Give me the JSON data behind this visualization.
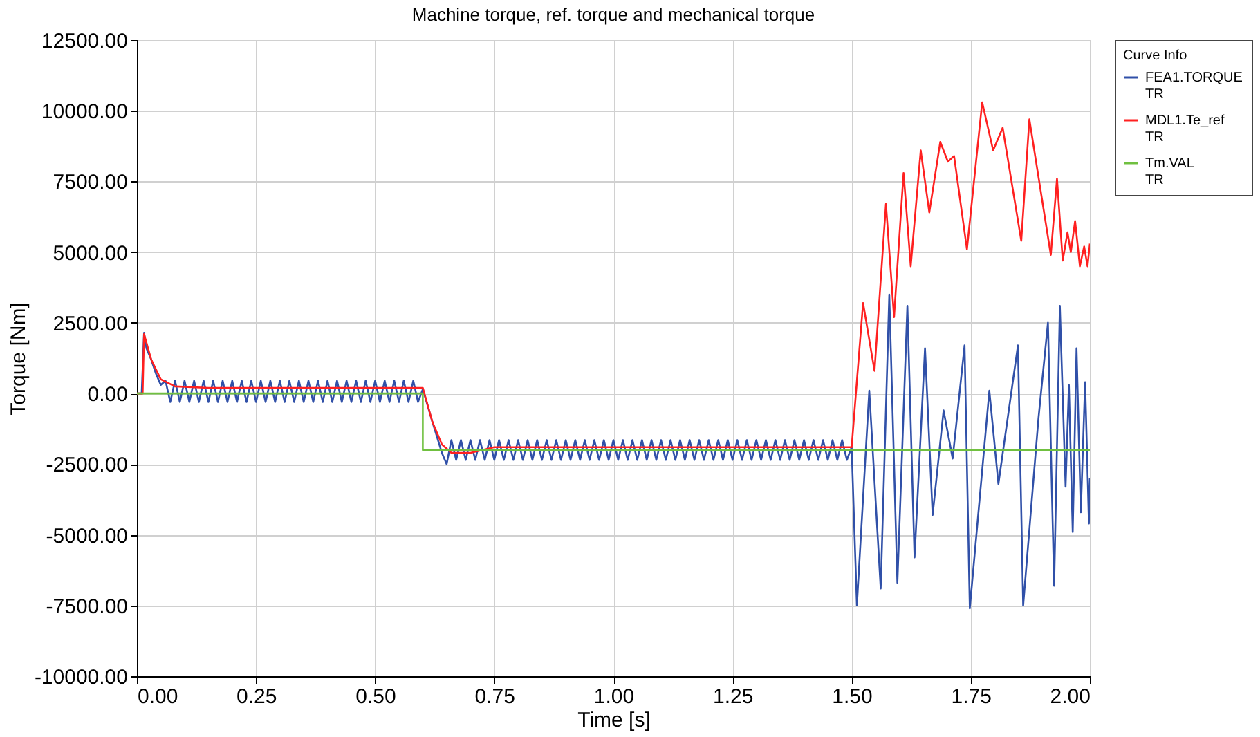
{
  "chart_data": {
    "type": "line",
    "title": "Machine torque, ref. torque and mechanical torque",
    "xlabel": "Time [s]",
    "ylabel": "Torque [Nm]",
    "legend_title": "Curve Info",
    "xlim": [
      0,
      2
    ],
    "xticks": [
      {
        "value": 0,
        "label": "0.00"
      },
      {
        "value": 0.25,
        "label": "0.25"
      },
      {
        "value": 0.5,
        "label": "0.50"
      },
      {
        "value": 0.75,
        "label": "0.75"
      },
      {
        "value": 1,
        "label": "1.00"
      },
      {
        "value": 1.25,
        "label": "1.25"
      },
      {
        "value": 1.5,
        "label": "1.50"
      },
      {
        "value": 1.75,
        "label": "1.75"
      },
      {
        "value": 2,
        "label": "2.00"
      }
    ],
    "ylim": [
      -10000,
      12500
    ],
    "yticks": [
      {
        "value": -10000,
        "label": "-10000.00"
      },
      {
        "value": -7500,
        "label": "-7500.00"
      },
      {
        "value": -5000,
        "label": "-5000.00"
      },
      {
        "value": -2500,
        "label": "-2500.00"
      },
      {
        "value": 0,
        "label": "0.00"
      },
      {
        "value": 2500,
        "label": "2500.00"
      },
      {
        "value": 5000,
        "label": "5000.00"
      },
      {
        "value": 7500,
        "label": "7500.00"
      },
      {
        "value": 10000,
        "label": "10000.00"
      },
      {
        "value": 12500,
        "label": "12500.00"
      }
    ],
    "grid": true,
    "legend": "top right",
    "series": [
      {
        "name": "FEA1.TORQUE\nTR",
        "color": "#3050a8",
        "x": [
          0,
          0.01,
          0.015,
          0.02,
          0.03,
          0.04,
          0.05,
          0.06,
          0.07,
          0.08,
          0.09,
          0.1,
          0.11,
          0.12,
          0.13,
          0.14,
          0.15,
          0.16,
          0.17,
          0.18,
          0.19,
          0.2,
          0.21,
          0.22,
          0.23,
          0.24,
          0.25,
          0.26,
          0.27,
          0.28,
          0.29,
          0.3,
          0.31,
          0.32,
          0.33,
          0.34,
          0.35,
          0.36,
          0.37,
          0.38,
          0.39,
          0.4,
          0.41,
          0.42,
          0.43,
          0.44,
          0.45,
          0.46,
          0.47,
          0.48,
          0.49,
          0.5,
          0.51,
          0.52,
          0.53,
          0.54,
          0.55,
          0.56,
          0.57,
          0.58,
          0.59,
          0.6,
          0.62,
          0.64,
          0.65,
          0.66,
          0.67,
          0.68,
          0.69,
          0.7,
          0.71,
          0.72,
          0.73,
          0.74,
          0.75,
          0.76,
          0.77,
          0.78,
          0.79,
          0.8,
          0.81,
          0.82,
          0.83,
          0.84,
          0.85,
          0.86,
          0.87,
          0.88,
          0.89,
          0.9,
          0.91,
          0.92,
          0.93,
          0.94,
          0.95,
          0.96,
          0.97,
          0.98,
          0.99,
          1.0,
          1.01,
          1.02,
          1.03,
          1.04,
          1.05,
          1.06,
          1.07,
          1.08,
          1.09,
          1.1,
          1.11,
          1.12,
          1.13,
          1.14,
          1.15,
          1.16,
          1.17,
          1.18,
          1.19,
          1.2,
          1.21,
          1.22,
          1.23,
          1.24,
          1.25,
          1.26,
          1.27,
          1.28,
          1.29,
          1.3,
          1.31,
          1.32,
          1.33,
          1.34,
          1.35,
          1.36,
          1.37,
          1.38,
          1.39,
          1.4,
          1.41,
          1.42,
          1.43,
          1.44,
          1.45,
          1.46,
          1.47,
          1.48,
          1.49,
          1.5,
          1.511,
          1.537,
          1.561,
          1.579,
          1.596,
          1.617,
          1.632,
          1.654,
          1.67,
          1.693,
          1.712,
          1.737,
          1.748,
          1.789,
          1.808,
          1.849,
          1.86,
          1.892,
          1.912,
          1.925,
          1.937,
          1.949,
          1.956,
          1.964,
          1.972,
          1.981,
          1.99,
          1.998,
          2.0
        ],
        "values": [
          0,
          0,
          2150,
          1600,
          1200,
          700,
          300,
          450,
          -300,
          450,
          -300,
          450,
          -300,
          450,
          -300,
          450,
          -300,
          450,
          -300,
          450,
          -300,
          450,
          -300,
          450,
          -300,
          450,
          -300,
          450,
          -300,
          450,
          -300,
          450,
          -300,
          450,
          -300,
          450,
          -300,
          450,
          -300,
          450,
          -300,
          450,
          -300,
          450,
          -300,
          450,
          -300,
          450,
          -300,
          450,
          -300,
          450,
          -300,
          450,
          -300,
          450,
          -300,
          450,
          -300,
          450,
          -300,
          150,
          -1000,
          -2100,
          -2500,
          -1650,
          -2350,
          -1650,
          -2350,
          -1650,
          -2350,
          -1650,
          -2350,
          -1650,
          -2350,
          -1650,
          -2350,
          -1650,
          -2350,
          -1650,
          -2350,
          -1650,
          -2350,
          -1650,
          -2350,
          -1650,
          -2350,
          -1650,
          -2350,
          -1650,
          -2350,
          -1650,
          -2350,
          -1650,
          -2350,
          -1650,
          -2350,
          -1650,
          -2350,
          -1650,
          -2350,
          -1650,
          -2350,
          -1650,
          -2350,
          -1650,
          -2350,
          -1650,
          -2350,
          -1650,
          -2350,
          -1650,
          -2350,
          -1650,
          -2350,
          -1650,
          -2350,
          -1650,
          -2350,
          -1650,
          -2350,
          -1650,
          -2350,
          -1650,
          -2350,
          -1650,
          -2350,
          -1650,
          -2350,
          -1650,
          -2350,
          -1650,
          -2350,
          -1650,
          -2350,
          -1650,
          -2350,
          -1650,
          -2350,
          -1650,
          -2350,
          -1650,
          -2350,
          -1650,
          -2350,
          -1650,
          -2350,
          -1650,
          -2350,
          -1900,
          -7500,
          100,
          -6900,
          3500,
          -6700,
          3100,
          -5800,
          1600,
          -4300,
          -600,
          -2300,
          1700,
          -7600,
          100,
          -3200,
          1700,
          -7500,
          -900,
          2500,
          -6800,
          3100,
          -3300,
          300,
          -4900,
          1600,
          -4200,
          400,
          -4600,
          -3000
        ]
      },
      {
        "name": "MDL1.Te_ref\nTR",
        "color": "#ff2020",
        "x": [
          0,
          0.012,
          0.015,
          0.03,
          0.05,
          0.08,
          0.15,
          0.6,
          0.62,
          0.64,
          0.66,
          0.7,
          0.75,
          0.85,
          1.5,
          1.524,
          1.548,
          1.572,
          1.589,
          1.609,
          1.624,
          1.645,
          1.663,
          1.686,
          1.702,
          1.715,
          1.742,
          1.774,
          1.797,
          1.817,
          1.856,
          1.873,
          1.918,
          1.931,
          1.943,
          1.953,
          1.96,
          1.969,
          1.979,
          1.988,
          1.995,
          2.0
        ],
        "values": [
          0,
          0,
          2100,
          1200,
          500,
          250,
          200,
          200,
          -1000,
          -1800,
          -2100,
          -2100,
          -1900,
          -1900,
          -1900,
          3200,
          800,
          6700,
          2700,
          7800,
          4500,
          8600,
          6400,
          8900,
          8200,
          8400,
          5100,
          10300,
          8600,
          9400,
          5400,
          9700,
          4900,
          7600,
          4700,
          5700,
          5000,
          6100,
          4500,
          5200,
          4500,
          5300
        ]
      },
      {
        "name": "Tm.VAL\nTR",
        "color": "#70c040",
        "type": "step",
        "x": [
          0,
          0.6,
          2.0
        ],
        "values": [
          0,
          -2000,
          -2000
        ]
      }
    ]
  }
}
